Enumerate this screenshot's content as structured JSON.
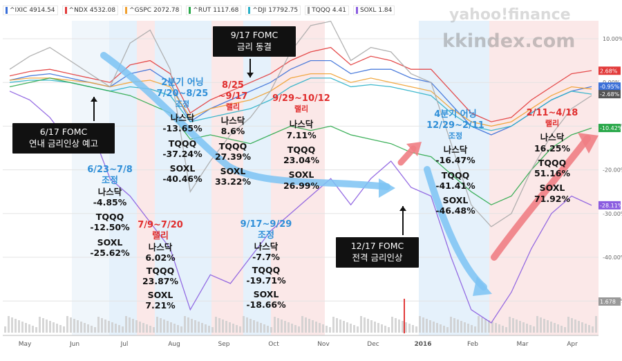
{
  "legend": [
    {
      "sym": "^IXIC",
      "val": "4914.54",
      "color": "#3a6fd8"
    },
    {
      "sym": "^NDX",
      "val": "4532.08",
      "color": "#e23a3a"
    },
    {
      "sym": "^GSPC",
      "val": "2072.78",
      "color": "#f0a030"
    },
    {
      "sym": "^RUT",
      "val": "1117.68",
      "color": "#2aa84a"
    },
    {
      "sym": "^DJI",
      "val": "17792.75",
      "color": "#2ab0c8"
    },
    {
      "sym": "TQQQ",
      "val": "4.41",
      "color": "#999999"
    },
    {
      "sym": "SOXL",
      "val": "1.84",
      "color": "#8a5ce0"
    }
  ],
  "watermark": {
    "line1": "yahoo!finance",
    "line2": "kkindex.com"
  },
  "callouts": {
    "fomc_jun": {
      "line1": "6/17 FOMC",
      "line2": "연내 금리인상 예고"
    },
    "fomc_sep": {
      "line1": "9/17 FOMC",
      "line2": "금리 동결"
    },
    "fomc_dec": {
      "line1": "12/17 FOMC",
      "line2": "전격 금리인상"
    }
  },
  "periods": [
    {
      "id": "p1",
      "title": "6/23~7/8",
      "sub": "조정",
      "kind": "correction",
      "nasdaq": "-4.85%",
      "tqqq": "-12.50%",
      "soxl": "-25.62%"
    },
    {
      "id": "p2",
      "title": "7/9~7/20",
      "sub": "랠리",
      "kind": "rally",
      "nasdaq": "6.02%",
      "tqqq": "23.87%",
      "soxl": "7.21%"
    },
    {
      "id": "p3",
      "title_a": "2분기 어닝",
      "title": "7/20~8/25",
      "sub": "조정",
      "kind": "correction",
      "nasdaq": "-13.65%",
      "tqqq": "-37.24%",
      "soxl": "-40.46%"
    },
    {
      "id": "p4",
      "title_a": "8/25",
      "title": "~9/17",
      "sub": "랠리",
      "kind": "rally",
      "nasdaq": "8.6%",
      "tqqq": "27.39%",
      "soxl": "33.22%"
    },
    {
      "id": "p5",
      "title": "9/17~9/29",
      "sub": "조정",
      "kind": "correction",
      "nasdaq": "-7.7%",
      "tqqq": "-19.71%",
      "soxl": "-18.66%"
    },
    {
      "id": "p6",
      "title": "9/29~10/12",
      "sub": "랠리",
      "kind": "rally",
      "nasdaq": "7.11%",
      "tqqq": "23.04%",
      "soxl": "26.99%"
    },
    {
      "id": "p7",
      "title_a": "4분기 어닝",
      "title": "12/29~2/11",
      "sub": "조정",
      "kind": "correction",
      "nasdaq": "-16.47%",
      "tqqq": "-41.41%",
      "soxl": "-46.48%"
    },
    {
      "id": "p8",
      "title": "2/11~4/18",
      "sub": "랠리",
      "kind": "rally",
      "nasdaq": "16.25%",
      "tqqq": "51.16%",
      "soxl": "71.92%"
    }
  ],
  "labels": {
    "nasdaq": "나스닥",
    "tqqq": "TQQQ",
    "soxl": "SOXL"
  },
  "chart_data": {
    "type": "line",
    "x_ticks": [
      "May",
      "Jun",
      "Jul",
      "Aug",
      "Sep",
      "Oct",
      "Nov",
      "Dec",
      "2016",
      "Feb",
      "Mar",
      "Apr"
    ],
    "y_ticks": [
      "10.00%",
      "0.00%",
      "-10.00%",
      "-20.00%",
      "-30.00%",
      "-40.00%",
      "-50.00%"
    ],
    "ylim": [
      -50,
      12
    ],
    "end_values": [
      {
        "series": "^NDX",
        "label": "2.68%",
        "value": 2.68,
        "color": "#e23a3a"
      },
      {
        "series": "^IXIC",
        "label": "-0.95%",
        "value": -0.95,
        "color": "#3a6fd8"
      },
      {
        "series": "^DJI",
        "label": "-2.68%",
        "value": -2.68,
        "color": "#555555"
      },
      {
        "series": "^RUT",
        "label": "-10.42%",
        "value": -10.42,
        "color": "#2aa84a"
      },
      {
        "series": "SOXL",
        "label": "-28.11%",
        "value": -28.11,
        "color": "#8a5ce0"
      },
      {
        "series": "volume",
        "label": "1.678",
        "value": 1.678,
        "color": "#999999"
      }
    ],
    "series": [
      {
        "name": "^NDX",
        "color": "#e23a3a",
        "values": [
          1.5,
          2.5,
          3,
          2,
          1,
          0,
          4,
          5,
          2,
          -7,
          -4,
          -2,
          0,
          2,
          5,
          7,
          8,
          4,
          6,
          5,
          3,
          3,
          -2,
          -7,
          -9,
          -8,
          -4,
          -1,
          2,
          2.7
        ]
      },
      {
        "series_note": "",
        "name": "^IXIC",
        "color": "#3a6fd8",
        "values": [
          0.5,
          1.5,
          2,
          1,
          0,
          -1,
          2,
          3,
          0,
          -9,
          -6,
          -4,
          -2,
          0,
          3,
          5,
          5,
          2,
          3,
          3,
          1,
          0,
          -5,
          -10,
          -12,
          -10,
          -7,
          -4,
          -2,
          -0.95
        ]
      },
      {
        "name": "^GSPC",
        "color": "#f0a030",
        "values": [
          0.5,
          1,
          1,
          0.5,
          0,
          -1,
          0,
          0.5,
          -1,
          -8,
          -6,
          -5,
          -4,
          -2,
          1,
          2,
          2,
          0,
          1,
          0,
          -1,
          -2,
          -6,
          -9,
          -10,
          -9,
          -6,
          -3,
          -1,
          -1.5
        ]
      },
      {
        "name": "^DJI",
        "color": "#2ab0c8",
        "values": [
          0,
          0.5,
          0.5,
          0,
          -1,
          -2,
          -1,
          -1.5,
          -3,
          -9,
          -8,
          -7,
          -6,
          -4,
          -1,
          1,
          1,
          -1,
          -0.5,
          -1,
          -2,
          -3,
          -7,
          -10,
          -11,
          -10,
          -7,
          -4,
          -2,
          -2.68
        ]
      },
      {
        "name": "^RUT",
        "color": "#2aa84a",
        "values": [
          -1,
          0,
          1,
          0,
          -1,
          -2,
          -3,
          -5,
          -7,
          -13,
          -12,
          -13,
          -14,
          -12,
          -10,
          -11,
          -10,
          -12,
          -13,
          -14,
          -16,
          -17,
          -21,
          -25,
          -28,
          -26,
          -20,
          -15,
          -12,
          -10.42
        ]
      },
      {
        "name": "TQQQ",
        "color": "#aaaaaa",
        "values": [
          3,
          6,
          8,
          5,
          2,
          -1,
          9,
          12,
          3,
          -25,
          -18,
          -12,
          -8,
          -2,
          7,
          13,
          14,
          5,
          8,
          7,
          2,
          0,
          -14,
          -28,
          -33,
          -30,
          -20,
          -12,
          -6,
          -3
        ]
      },
      {
        "name": "SOXL",
        "color": "#8a5ce0",
        "values": [
          -2,
          -4,
          -8,
          -14,
          -10,
          -22,
          -26,
          -32,
          -38,
          -52,
          -44,
          -46,
          -40,
          -34,
          -30,
          -26,
          -22,
          -28,
          -22,
          -18,
          -24,
          -26,
          -40,
          -52,
          -55,
          -48,
          -38,
          -30,
          -26,
          -28.11
        ]
      }
    ]
  }
}
